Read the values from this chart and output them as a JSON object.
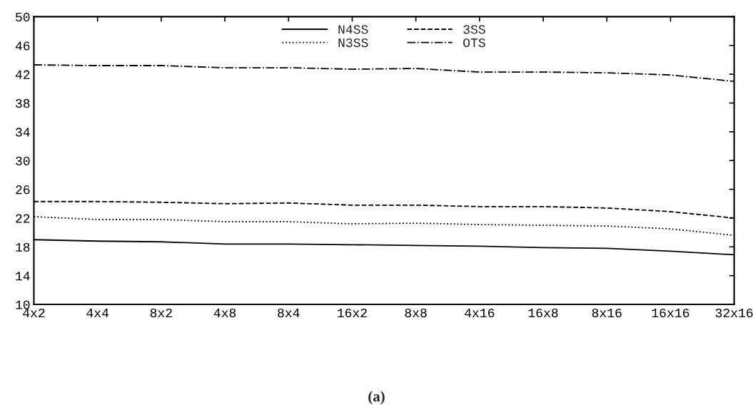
{
  "chart_data": {
    "type": "line",
    "categories": [
      "4x2",
      "4x4",
      "8x2",
      "4x8",
      "8x4",
      "16x2",
      "8x8",
      "4x16",
      "16x8",
      "8x16",
      "16x16",
      "32x16"
    ],
    "series": [
      {
        "name": "N4SS",
        "color": "#000000",
        "line_style": "solid",
        "values": [
          19.0,
          18.8,
          18.7,
          18.4,
          18.4,
          18.3,
          18.2,
          18.1,
          17.9,
          17.8,
          17.4,
          16.9
        ]
      },
      {
        "name": "3SS",
        "color": "#000000",
        "line_style": "dashed",
        "values": [
          24.3,
          24.3,
          24.2,
          24.0,
          24.1,
          23.8,
          23.8,
          23.6,
          23.6,
          23.4,
          22.9,
          22.0
        ]
      },
      {
        "name": "N3SS",
        "color": "#000000",
        "line_style": "dotted",
        "values": [
          22.2,
          21.8,
          21.8,
          21.5,
          21.5,
          21.2,
          21.3,
          21.1,
          21.0,
          20.9,
          20.5,
          19.6
        ]
      },
      {
        "name": "OTS",
        "color": "#000000",
        "line_style": "dashdot",
        "values": [
          43.3,
          43.2,
          43.2,
          42.9,
          42.9,
          42.7,
          42.8,
          42.3,
          42.3,
          42.2,
          41.9,
          41.0
        ]
      }
    ],
    "ylim": [
      10,
      50
    ],
    "yticks": [
      10,
      14,
      18,
      22,
      26,
      30,
      34,
      38,
      42,
      46,
      50
    ],
    "legend": "top",
    "grid": false,
    "marker": "none",
    "annotations": [
      "(a)"
    ]
  }
}
